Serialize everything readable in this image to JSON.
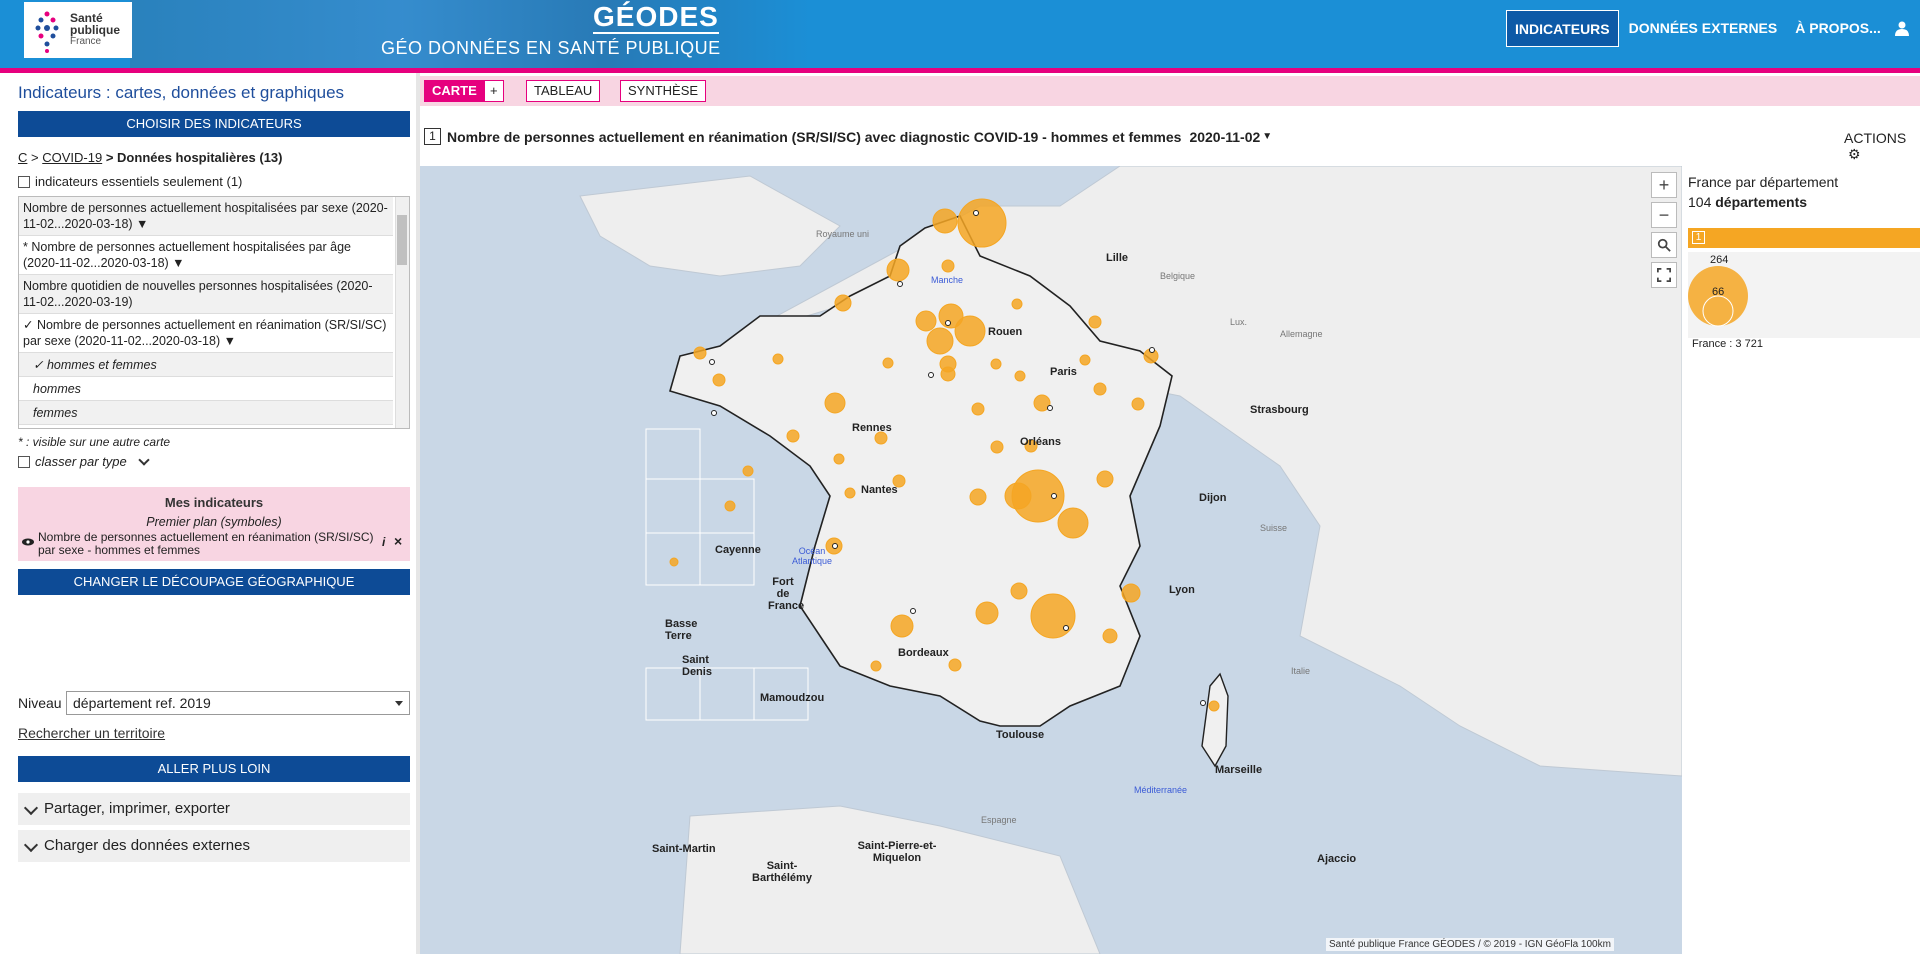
{
  "header": {
    "logo_line1": "Santé",
    "logo_line2": "publique",
    "logo_line3": "France",
    "title": "GÉODES",
    "subtitle": "GÉO DONNÉES EN SANTÉ PUBLIQUE",
    "nav": [
      "INDICATEURS",
      "DONNÉES EXTERNES",
      "À PROPOS..."
    ],
    "user_icon": "user-icon"
  },
  "sidebar": {
    "title": "Indicateurs : cartes, données et graphiques",
    "choose_btn": "CHOISIR DES INDICATEURS",
    "breadcrumb": {
      "c": "C",
      "sep1": ">",
      "covid": "COVID-19",
      "sep2": ">",
      "current": "Données hospitalières (13)"
    },
    "essential_label": "indicateurs essentiels seulement (1)",
    "indicators": [
      "Nombre de personnes actuellement hospitalisées par sexe (2020-11-02...2020-03-18) ▼",
      "* Nombre de personnes actuellement hospitalisées par âge (2020-11-02...2020-03-18) ▼",
      "Nombre quotidien de nouvelles personnes hospitalisées (2020-11-02...2020-03-19)",
      "✓ Nombre de personnes actuellement en réanimation (SR/SI/SC) par sexe (2020-11-02...2020-03-18) ▼"
    ],
    "sub_options": [
      "✓ hommes et femmes",
      "hommes",
      "femmes"
    ],
    "note": "* : visible sur une autre carte",
    "class_label": "classer par type",
    "mes": {
      "title": "Mes indicateurs",
      "plan": "Premier plan (symboles)",
      "item": "Nombre de personnes actuellement en réanimation (SR/SI/SC) par sexe - hommes et femmes"
    },
    "change_btn": "CHANGER LE DÉCOUPAGE GÉOGRAPHIQUE",
    "niveau_label": "Niveau",
    "niveau_value": "département ref. 2019",
    "search_link": "Rechercher un territoire",
    "further_btn": "ALLER PLUS LOIN",
    "accordions": [
      "Partager, imprimer, exporter",
      "Charger des données externes"
    ]
  },
  "main": {
    "tabs": [
      "CARTE",
      "+",
      "TABLEAU",
      "SYNTHÈSE"
    ],
    "map_num": "1",
    "map_title": "Nombre de personnes actuellement en réanimation (SR/SI/SC) avec diagnostic COVID-19 - hommes et femmes",
    "map_date": "2020-11-02",
    "actions": "ACTIONS",
    "zoom": [
      "+",
      "−"
    ],
    "map_labels": {
      "cities": [
        "Lille",
        "Rouen",
        "Paris",
        "Orléans",
        "Rennes",
        "Nantes",
        "Strasbourg",
        "Dijon",
        "Lyon",
        "Bordeaux",
        "Toulouse",
        "Marseille",
        "Ajaccio"
      ],
      "overseas": [
        "Cayenne",
        "Fort de France",
        "Basse Terre",
        "Saint Denis",
        "Mamoudzou",
        "Saint-Martin",
        "Saint-Barthélémy",
        "Saint-Pierre-et-Miquelon"
      ],
      "countries": [
        "Royaume uni",
        "Belgique",
        "Lux.",
        "Allemagne",
        "Suisse",
        "Italie",
        "Espagne"
      ],
      "seas": [
        "Manche",
        "Océan Atlantique",
        "Méditerranée"
      ]
    },
    "attribution": "Santé publique France GÉODES / © 2019 - IGN GéoFla  100km"
  },
  "legend": {
    "title": "France par département",
    "count_num": "104",
    "count_label": "départements",
    "bar_num": "1",
    "max_value": "264",
    "min_value": "66",
    "total": "France : 3 721"
  },
  "colors": {
    "accent": "#e6007e",
    "primary": "#0d4b96",
    "bubble": "#f5a623",
    "map_bg": "#c9d7e6"
  }
}
